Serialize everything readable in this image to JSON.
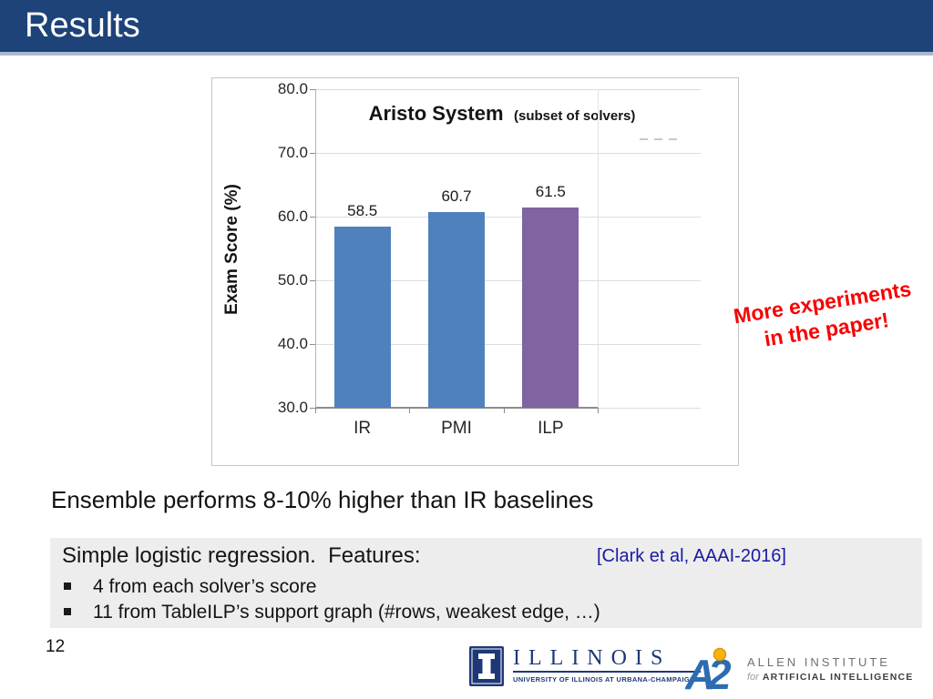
{
  "slide": {
    "title": "Results",
    "page_number": "12",
    "key_finding": "Ensemble performs 8-10% higher than IR baselines",
    "annotation": {
      "line1": "More experiments",
      "line2": "in the paper!"
    },
    "features_box": {
      "heading": "Simple logistic regression.  Features:",
      "citation": "[Clark et al, AAAI-2016]",
      "bullets": [
        "4 from each solver’s score",
        "11 from TableILP’s support graph (#rows, weakest edge, …)"
      ]
    },
    "footer": {
      "illinois_wordmark": "ILLINOIS",
      "illinois_subtext": "UNIVERSITY OF ILLINOIS AT URBANA-CHAMPAIGN",
      "ai2_line1": "ALLEN INSTITUTE",
      "ai2_line2_prefix": "for",
      "ai2_line2": "ARTIFICIAL INTELLIGENCE"
    },
    "colors": {
      "header_blue": "#1D4379",
      "annotation_red": "#F70000",
      "citation_blue": "#1A1AA6",
      "features_box_gray": "#EDEDED"
    }
  },
  "chart_data": {
    "type": "bar",
    "title": "Aristo System",
    "title_suffix": "(subset of solvers)",
    "ylabel": "Exam Score (%)",
    "xlabel": "",
    "categories": [
      "IR",
      "PMI",
      "ILP"
    ],
    "values": [
      58.5,
      60.7,
      61.5
    ],
    "data_labels": [
      "58.5",
      "60.7",
      "61.5"
    ],
    "bar_colors": [
      "#4F81BD",
      "#4F81BD",
      "#8064A2"
    ],
    "ylim": [
      30,
      80
    ],
    "ytick_step": 10,
    "ytick_labels": [
      "30.0",
      "40.0",
      "50.0",
      "60.0",
      "70.0",
      "80.0"
    ],
    "grid": true,
    "legend": false
  }
}
